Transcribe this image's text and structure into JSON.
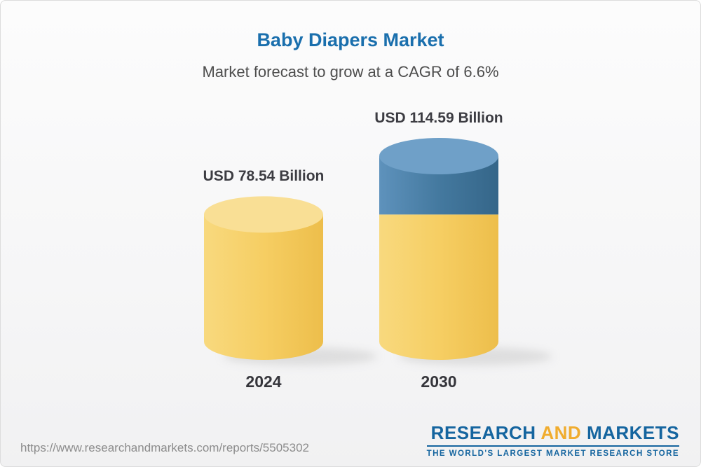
{
  "chart_data": {
    "type": "bar",
    "variant": "3d-cylinder",
    "title": "Baby Diapers Market",
    "subtitle": "Market forecast to grow at a CAGR of 6.6%",
    "unit": "USD Billion",
    "cagr": "6.6%",
    "categories": [
      "2024",
      "2030"
    ],
    "values": [
      78.54,
      114.59
    ],
    "legend": "none",
    "bars": [
      {
        "category": "2024",
        "total": 78.54,
        "label": "USD 78.54 Billion",
        "segments": [
          {
            "value": 78.54,
            "color": "yellow"
          }
        ]
      },
      {
        "category": "2030",
        "total": 114.59,
        "label": "USD 114.59 Billion",
        "segments": [
          {
            "value": 78.54,
            "color": "yellow"
          },
          {
            "value": 36.05,
            "color": "blue"
          }
        ]
      }
    ]
  },
  "footer": {
    "url": "https://www.researchandmarkets.com/reports/5505302"
  },
  "logo": {
    "word1": "RESEARCH",
    "word2": "AND",
    "word3": "MARKETS",
    "tagline": "THE WORLD'S LARGEST MARKET RESEARCH STORE"
  },
  "colors": {
    "title_blue": "#1A6FAD",
    "subtitle_gray": "#4D4D4D",
    "label_dark": "#3C3C42",
    "url_gray": "#8C8C8C",
    "logo_blue": "#15659F",
    "logo_gold": "#F0AC2E",
    "bars": {
      "yellow": {
        "body_light": "#F8D97E",
        "body": "#F6CE63",
        "body_dark": "#EDBE4B",
        "top": "#F9DF95"
      },
      "blue": {
        "body_light": "#5E92BC",
        "body": "#44799F",
        "body_dark": "#356689",
        "top": "#6FA0C8"
      }
    }
  }
}
